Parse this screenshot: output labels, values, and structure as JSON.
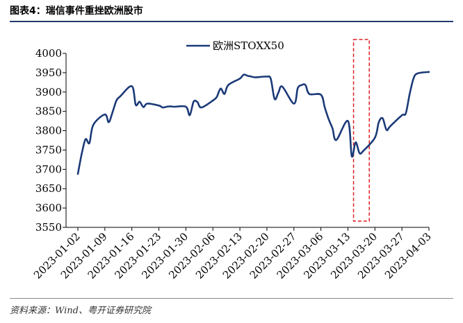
{
  "figure_title": "图表4：瑞信事件重挫欧洲股市",
  "source": "资料来源：Wind、粤开证券研究院",
  "chart_data": {
    "type": "line",
    "title": "",
    "xlabel": "",
    "ylabel": "",
    "ylim": [
      3550,
      4000
    ],
    "yticks": [
      3550,
      3600,
      3650,
      3700,
      3750,
      3800,
      3850,
      3900,
      3950,
      4000
    ],
    "xticks": [
      "2023-01-02",
      "2023-01-09",
      "2023-01-16",
      "2023-01-23",
      "2023-01-30",
      "2023-02-06",
      "2023-02-13",
      "2023-02-20",
      "2023-02-27",
      "2023-03-06",
      "2023-03-13",
      "2023-03-20",
      "2023-03-27",
      "2023-04-03"
    ],
    "legend_position": "top-center",
    "line_color": "#1b3a78",
    "highlight_box": {
      "x_range": [
        "2023-03-15",
        "2023-03-18"
      ],
      "color": "#e02020",
      "style": "dashed"
    },
    "series": [
      {
        "name": "欧洲STOXX50",
        "points": [
          [
            "2023-01-02",
            3688
          ],
          [
            "2023-01-03",
            3740
          ],
          [
            "2023-01-04",
            3778
          ],
          [
            "2023-01-05",
            3768
          ],
          [
            "2023-01-06",
            3815
          ],
          [
            "2023-01-09",
            3842
          ],
          [
            "2023-01-10",
            3822
          ],
          [
            "2023-01-11",
            3848
          ],
          [
            "2023-01-12",
            3878
          ],
          [
            "2023-01-13",
            3889
          ],
          [
            "2023-01-16",
            3915
          ],
          [
            "2023-01-17",
            3867
          ],
          [
            "2023-01-18",
            3875
          ],
          [
            "2023-01-19",
            3861
          ],
          [
            "2023-01-20",
            3870
          ],
          [
            "2023-01-23",
            3865
          ],
          [
            "2023-01-24",
            3860
          ],
          [
            "2023-01-25",
            3862
          ],
          [
            "2023-01-26",
            3863
          ],
          [
            "2023-01-27",
            3862
          ],
          [
            "2023-01-30",
            3862
          ],
          [
            "2023-01-31",
            3840
          ],
          [
            "2023-02-01",
            3875
          ],
          [
            "2023-02-02",
            3874
          ],
          [
            "2023-02-03",
            3860
          ],
          [
            "2023-02-06",
            3878
          ],
          [
            "2023-02-07",
            3887
          ],
          [
            "2023-02-08",
            3909
          ],
          [
            "2023-02-09",
            3895
          ],
          [
            "2023-02-10",
            3918
          ],
          [
            "2023-02-13",
            3935
          ],
          [
            "2023-02-14",
            3945
          ],
          [
            "2023-02-15",
            3942
          ],
          [
            "2023-02-16",
            3940
          ],
          [
            "2023-02-17",
            3938
          ],
          [
            "2023-02-20",
            3940
          ],
          [
            "2023-02-21",
            3934
          ],
          [
            "2023-02-22",
            3882
          ],
          [
            "2023-02-23",
            3899
          ],
          [
            "2023-02-24",
            3914
          ],
          [
            "2023-02-27",
            3870
          ],
          [
            "2023-02-28",
            3910
          ],
          [
            "2023-03-01",
            3918
          ],
          [
            "2023-03-02",
            3918
          ],
          [
            "2023-03-03",
            3895
          ],
          [
            "2023-03-06",
            3893
          ],
          [
            "2023-03-07",
            3860
          ],
          [
            "2023-03-08",
            3830
          ],
          [
            "2023-03-09",
            3806
          ],
          [
            "2023-03-10",
            3776
          ],
          [
            "2023-03-13",
            3825
          ],
          [
            "2023-03-14",
            3734
          ],
          [
            "2023-03-15",
            3770
          ],
          [
            "2023-03-16",
            3742
          ],
          [
            "2023-03-17",
            3748
          ],
          [
            "2023-03-20",
            3782
          ],
          [
            "2023-03-21",
            3822
          ],
          [
            "2023-03-22",
            3832
          ],
          [
            "2023-03-23",
            3802
          ],
          [
            "2023-03-24",
            3812
          ],
          [
            "2023-03-27",
            3840
          ],
          [
            "2023-03-28",
            3845
          ],
          [
            "2023-03-29",
            3895
          ],
          [
            "2023-03-30",
            3935
          ],
          [
            "2023-03-31",
            3948
          ],
          [
            "2023-04-03",
            3952
          ]
        ]
      }
    ]
  }
}
